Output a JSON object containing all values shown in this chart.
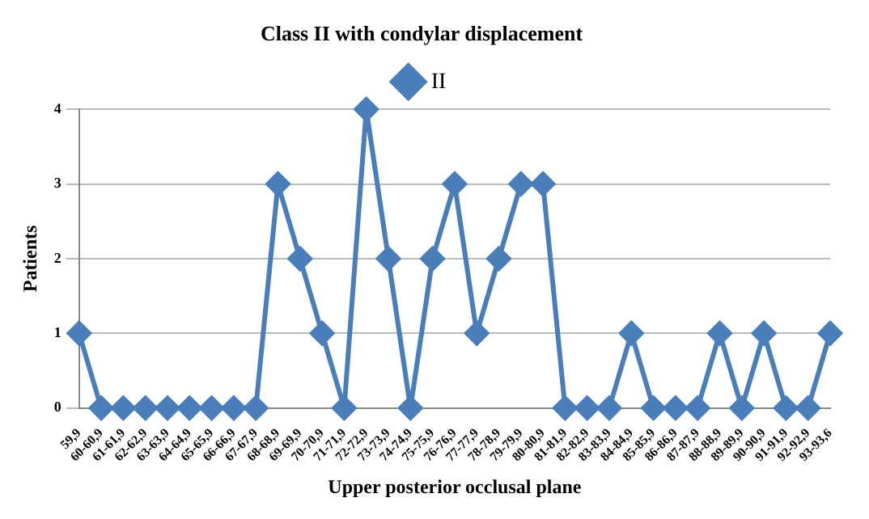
{
  "chart_data": {
    "type": "line",
    "title": "Class II with condylar displacement",
    "xlabel": "Upper posterior occlusal plane",
    "ylabel": "Patients",
    "categories": [
      "59,9",
      "60-60,9",
      "61-61,9",
      "62-62,9",
      "63-63,9",
      "64-64,9",
      "65-65,9",
      "66-66,9",
      "67-67,9",
      "68-68,9",
      "69-69,9",
      "70-70,9",
      "71-71,9",
      "72-72,9",
      "73-73,9",
      "74-74,9",
      "75-75,9",
      "76-76,9",
      "77-77,9",
      "78-78,9",
      "79-79,9",
      "80-80,9",
      "81-81,9",
      "82-82,9",
      "83-83,9",
      "84-84,9",
      "85-85,9",
      "86-86,9",
      "87-87,9",
      "88-88,9",
      "89-89,9",
      "90-90,9",
      "91-91,9",
      "92-92,9",
      "93-93,6"
    ],
    "series": [
      {
        "name": "II",
        "color": "#4a7ebb",
        "values": [
          1,
          0,
          0,
          0,
          0,
          0,
          0,
          0,
          0,
          3,
          2,
          1,
          0,
          4,
          2,
          0,
          2,
          3,
          1,
          2,
          3,
          3,
          0,
          0,
          0,
          1,
          0,
          0,
          0,
          1,
          0,
          1,
          0,
          0,
          1
        ]
      }
    ],
    "ylim": [
      0,
      4
    ],
    "yticks": [
      0,
      1,
      2,
      3,
      4
    ],
    "grid": "y",
    "legend": "top",
    "marker": "diamond",
    "line_style": "solid"
  }
}
